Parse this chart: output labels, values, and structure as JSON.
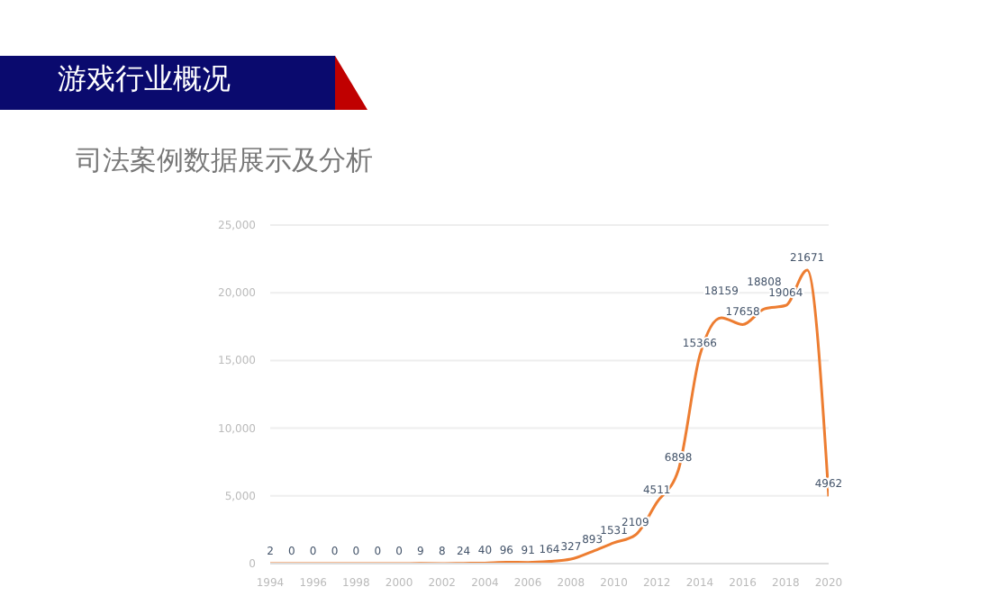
{
  "chart_data": {
    "type": "line",
    "title": "游戏行业概况",
    "subtitle": "司法案例数据展示及分析",
    "x": [
      1994,
      1995,
      1996,
      1997,
      1998,
      1999,
      2000,
      2001,
      2002,
      2003,
      2004,
      2005,
      2006,
      2007,
      2008,
      2009,
      2010,
      2011,
      2012,
      2013,
      2014,
      2015,
      2016,
      2017,
      2018,
      2019,
      2020
    ],
    "series": [
      {
        "color": "#ed7d31",
        "values": [
          2,
          0,
          0,
          0,
          0,
          0,
          0,
          9,
          8,
          24,
          40,
          96,
          91,
          164,
          327,
          893,
          1531,
          2109,
          4511,
          6898,
          15366,
          18159,
          17658,
          18808,
          19064,
          21671,
          4962
        ]
      }
    ],
    "xlim": [
      1994,
      2020
    ],
    "xticks": [
      1994,
      1996,
      1998,
      2000,
      2002,
      2004,
      2006,
      2008,
      2010,
      2012,
      2014,
      2016,
      2018,
      2020
    ],
    "ylim": [
      0,
      25000
    ],
    "yticks": [
      0,
      {
        "value": 5000,
        "label": "5,000"
      },
      {
        "value": 10000,
        "label": "10,000"
      },
      {
        "value": 15000,
        "label": "15,000"
      },
      {
        "value": 20000,
        "label": "20,000"
      },
      {
        "value": 25000,
        "label": "25,000"
      }
    ],
    "grid": "y",
    "data_labels": true,
    "marker": "none",
    "line_style": "solid"
  }
}
